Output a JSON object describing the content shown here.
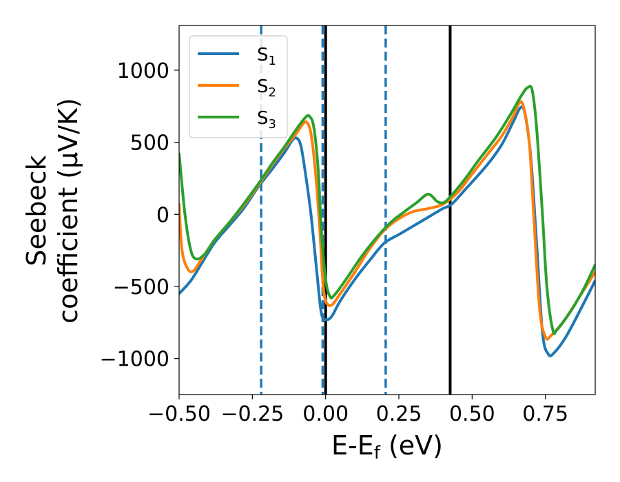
{
  "chart_data": {
    "type": "line",
    "title": "",
    "xlabel": "E-E",
    "xlabel_sub": "f",
    "xlabel_unit": " (eV)",
    "ylabel_line1": "Seebeck",
    "ylabel_line2": "coefficient  (μV/K)",
    "xlim": [
      -0.5,
      0.92
    ],
    "ylim": [
      -1250,
      1310
    ],
    "xticks": [
      -0.5,
      -0.25,
      0.0,
      0.25,
      0.5,
      0.75
    ],
    "xtick_labels": [
      "−0.50",
      "−0.25",
      "0.00",
      "0.25",
      "0.50",
      "0.75"
    ],
    "yticks": [
      -1000,
      -500,
      0,
      500,
      1000
    ],
    "ytick_labels": [
      "−1000",
      "−500",
      "0",
      "500",
      "1000"
    ],
    "legend_position": "top-left",
    "series": [
      {
        "name": "S",
        "subscript": "1",
        "color": "#1f77b4",
        "points": [
          [
            -0.5,
            -550
          ],
          [
            -0.46,
            -460
          ],
          [
            -0.42,
            -330
          ],
          [
            -0.38,
            -200
          ],
          [
            -0.33,
            -80
          ],
          [
            -0.28,
            40
          ],
          [
            -0.23,
            190
          ],
          [
            -0.18,
            320
          ],
          [
            -0.14,
            430
          ],
          [
            -0.115,
            510
          ],
          [
            -0.1,
            530
          ],
          [
            -0.085,
            480
          ],
          [
            -0.07,
            300
          ],
          [
            -0.05,
            0
          ],
          [
            -0.03,
            -400
          ],
          [
            -0.015,
            -680
          ],
          [
            0.0,
            -730
          ],
          [
            0.02,
            -710
          ],
          [
            0.05,
            -600
          ],
          [
            0.1,
            -450
          ],
          [
            0.15,
            -320
          ],
          [
            0.2,
            -200
          ],
          [
            0.25,
            -140
          ],
          [
            0.3,
            -80
          ],
          [
            0.35,
            -20
          ],
          [
            0.4,
            40
          ],
          [
            0.43,
            70
          ],
          [
            0.48,
            180
          ],
          [
            0.55,
            340
          ],
          [
            0.6,
            480
          ],
          [
            0.64,
            640
          ],
          [
            0.665,
            740
          ],
          [
            0.68,
            700
          ],
          [
            0.7,
            400
          ],
          [
            0.72,
            -200
          ],
          [
            0.74,
            -820
          ],
          [
            0.76,
            -970
          ],
          [
            0.78,
            -960
          ],
          [
            0.82,
            -850
          ],
          [
            0.87,
            -660
          ],
          [
            0.92,
            -460
          ]
        ]
      },
      {
        "name": "S",
        "subscript": "2",
        "color": "#ff7f0e",
        "points": [
          [
            -0.5,
            70
          ],
          [
            -0.49,
            -250
          ],
          [
            -0.47,
            -380
          ],
          [
            -0.45,
            -390
          ],
          [
            -0.42,
            -300
          ],
          [
            -0.38,
            -180
          ],
          [
            -0.33,
            -60
          ],
          [
            -0.28,
            60
          ],
          [
            -0.23,
            200
          ],
          [
            -0.18,
            350
          ],
          [
            -0.14,
            460
          ],
          [
            -0.1,
            560
          ],
          [
            -0.08,
            620
          ],
          [
            -0.065,
            640
          ],
          [
            -0.05,
            560
          ],
          [
            -0.035,
            300
          ],
          [
            -0.02,
            -100
          ],
          [
            -0.01,
            -450
          ],
          [
            0.0,
            -600
          ],
          [
            0.02,
            -630
          ],
          [
            0.05,
            -550
          ],
          [
            0.1,
            -400
          ],
          [
            0.15,
            -240
          ],
          [
            0.2,
            -110
          ],
          [
            0.25,
            -30
          ],
          [
            0.3,
            20
          ],
          [
            0.35,
            40
          ],
          [
            0.4,
            70
          ],
          [
            0.45,
            150
          ],
          [
            0.5,
            280
          ],
          [
            0.55,
            410
          ],
          [
            0.6,
            540
          ],
          [
            0.64,
            680
          ],
          [
            0.66,
            770
          ],
          [
            0.675,
            750
          ],
          [
            0.695,
            500
          ],
          [
            0.71,
            0
          ],
          [
            0.73,
            -650
          ],
          [
            0.75,
            -850
          ],
          [
            0.77,
            -840
          ],
          [
            0.82,
            -720
          ],
          [
            0.87,
            -560
          ],
          [
            0.92,
            -400
          ]
        ]
      },
      {
        "name": "S",
        "subscript": "3",
        "color": "#2ca02c",
        "points": [
          [
            -0.5,
            420
          ],
          [
            -0.48,
            0
          ],
          [
            -0.46,
            -250
          ],
          [
            -0.44,
            -310
          ],
          [
            -0.41,
            -270
          ],
          [
            -0.38,
            -180
          ],
          [
            -0.33,
            -60
          ],
          [
            -0.28,
            70
          ],
          [
            -0.23,
            210
          ],
          [
            -0.18,
            360
          ],
          [
            -0.14,
            470
          ],
          [
            -0.1,
            590
          ],
          [
            -0.07,
            670
          ],
          [
            -0.055,
            680
          ],
          [
            -0.04,
            600
          ],
          [
            -0.025,
            300
          ],
          [
            -0.015,
            -100
          ],
          [
            0.0,
            -450
          ],
          [
            0.015,
            -570
          ],
          [
            0.03,
            -560
          ],
          [
            0.07,
            -450
          ],
          [
            0.12,
            -300
          ],
          [
            0.17,
            -170
          ],
          [
            0.22,
            -60
          ],
          [
            0.27,
            20
          ],
          [
            0.31,
            80
          ],
          [
            0.35,
            140
          ],
          [
            0.38,
            90
          ],
          [
            0.4,
            80
          ],
          [
            0.42,
            110
          ],
          [
            0.47,
            230
          ],
          [
            0.52,
            370
          ],
          [
            0.58,
            530
          ],
          [
            0.63,
            690
          ],
          [
            0.67,
            830
          ],
          [
            0.69,
            880
          ],
          [
            0.705,
            860
          ],
          [
            0.72,
            600
          ],
          [
            0.74,
            0
          ],
          [
            0.755,
            -500
          ],
          [
            0.775,
            -800
          ],
          [
            0.79,
            -800
          ],
          [
            0.84,
            -660
          ],
          [
            0.88,
            -520
          ],
          [
            0.92,
            -350
          ]
        ]
      }
    ],
    "vertical_lines": [
      {
        "x": -0.22,
        "style": "dashed",
        "color": "#1f77b4"
      },
      {
        "x": -0.01,
        "style": "dashed",
        "color": "#1f77b4"
      },
      {
        "x": 0.205,
        "style": "dashed",
        "color": "#1f77b4"
      },
      {
        "x": 0.0,
        "style": "solid",
        "color": "#000000"
      },
      {
        "x": 0.425,
        "style": "solid",
        "color": "#000000"
      }
    ]
  }
}
